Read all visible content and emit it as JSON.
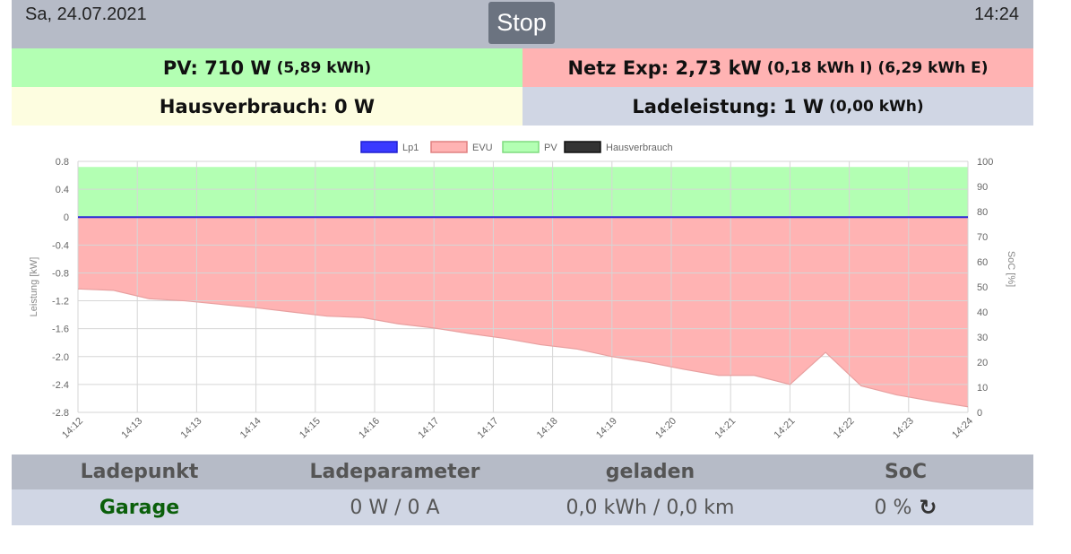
{
  "header": {
    "date": "Sa, 24.07.2021",
    "time": "14:24",
    "stop_label": "Stop"
  },
  "summary": {
    "pv_main": "PV: 710 W",
    "pv_sub": "(5,89 kWh)",
    "netz_main": "Netz Exp: 2,73 kW",
    "netz_sub": "(0,18 kWh I) (6,29 kWh E)",
    "haus_main": "Hausverbrauch: 0 W",
    "lade_main": "Ladeleistung: 1 W",
    "lade_sub": "(0,00 kWh)"
  },
  "colors": {
    "pv": "#b3ffb3",
    "evu": "#ffb3b3",
    "lp1": "#3a3aff",
    "haus": "#333333",
    "header": "#b6bbc7",
    "row": "#d0d6e4"
  },
  "chart_data": {
    "type": "area",
    "legend": [
      "Lp1",
      "EVU",
      "PV",
      "Hausverbrauch"
    ],
    "legend_position": "top",
    "ylabel": "Leistung [kW]",
    "y2label": "SoC [%]",
    "ylim": [
      -2.8,
      0.8
    ],
    "y_ticks": [
      "0.8",
      "0.4",
      "0",
      "-0.4",
      "-0.8",
      "-1.2",
      "-1.6",
      "-2.0",
      "-2.4",
      "-2.8"
    ],
    "y2lim": [
      0,
      100
    ],
    "y2_ticks": [
      "100",
      "90",
      "80",
      "70",
      "60",
      "50",
      "40",
      "30",
      "20",
      "10",
      "0"
    ],
    "x_ticks": [
      "14:12",
      "14:13",
      "14:13",
      "14:14",
      "14:15",
      "14:16",
      "14:17",
      "14:17",
      "14:18",
      "14:19",
      "14:20",
      "14:21",
      "14:21",
      "14:22",
      "14:23",
      "14:24"
    ],
    "grid": true,
    "series": [
      {
        "name": "PV",
        "values": [
          0.72,
          0.72,
          0.72,
          0.72,
          0.72,
          0.72,
          0.72,
          0.72,
          0.72,
          0.72,
          0.72,
          0.72,
          0.72,
          0.72,
          0.72,
          0.72
        ]
      },
      {
        "name": "EVU",
        "values": [
          -1.03,
          -1.05,
          -1.17,
          -1.2,
          -1.25,
          -1.3,
          -1.36,
          -1.42,
          -1.44,
          -1.53,
          -1.59,
          -1.67,
          -1.74,
          -1.83,
          -1.89,
          -2.0,
          -2.08,
          -2.18,
          -2.27,
          -2.27,
          -2.4,
          -1.94,
          -2.42,
          -2.55,
          -2.64,
          -2.72
        ]
      },
      {
        "name": "Lp1",
        "values": [
          0,
          0,
          0,
          0,
          0,
          0,
          0,
          0,
          0,
          0,
          0,
          0,
          0,
          0,
          0,
          0
        ]
      },
      {
        "name": "Hausverbrauch",
        "values": [
          0,
          0,
          0,
          0,
          0,
          0,
          0,
          0,
          0,
          0,
          0,
          0,
          0,
          0,
          0,
          0
        ]
      }
    ]
  },
  "table": {
    "headers": [
      "Ladepunkt",
      "Ladeparameter",
      "geladen",
      "SoC"
    ],
    "row": {
      "name": "Garage",
      "param": "0 W / 0 A",
      "geladen": "0,0 kWh / 0,0 km",
      "soc": "0 %"
    }
  }
}
